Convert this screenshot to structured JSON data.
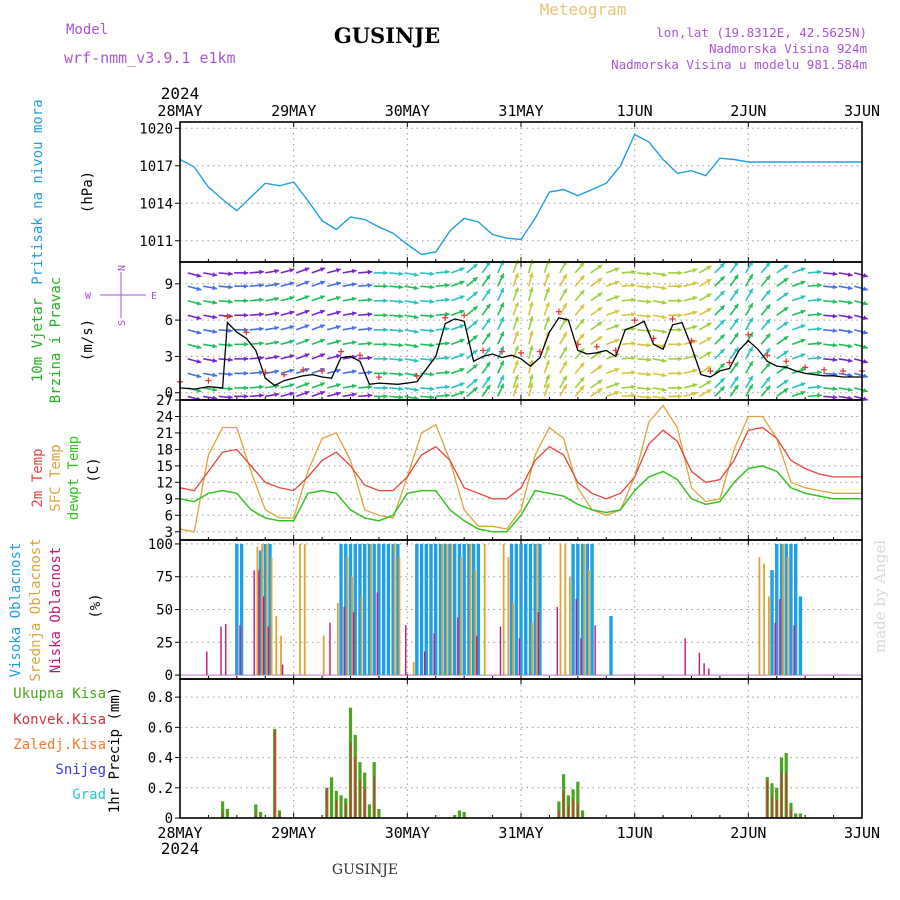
{
  "header": {
    "model_label": "Model",
    "model_name": "wrf-nmm_v3.9.1 e1km",
    "station": "GUSINJE",
    "product": "Meteogram",
    "lonlat": "lon,lat (19.8312E, 42.5625N)",
    "elevation": "Nadmorska Visina 924m",
    "model_elevation": "Nadmorska Visina u modelu 981.584m",
    "year": "2024"
  },
  "footer": {
    "station": "GUSINJE",
    "credit": "made by Angel",
    "year": "2024"
  },
  "colors": {
    "pressure": "#1fa0e0",
    "temp2m": "#e8453c",
    "sfc": "#dba53a",
    "dew": "#33c41f",
    "high": "#1f9fe6",
    "mid": "#dba53a",
    "low": "#c2177a",
    "precip_total": "#4aa51f",
    "precip_conv": "#d7303a",
    "wind_speed": "#000000",
    "gust_marks": "#e83030"
  },
  "chart_data": [
    {
      "id": "pressure",
      "type": "line",
      "title": "",
      "ylabel_lines": [
        "Pritisak na nivou mora"
      ],
      "unit": "(hPa)",
      "x_ticks": [
        "28MAY",
        "29MAY",
        "30MAY",
        "31MAY",
        "1JUN",
        "2JUN",
        "3JUN"
      ],
      "x_unit": "hours since 2024-05-28 00:00",
      "xlim": [
        0,
        144
      ],
      "ylim": [
        1009.3,
        1020.5
      ],
      "y_ticks": [
        1011,
        1014,
        1017,
        1020
      ],
      "series": [
        {
          "name": "Pritisak na nivou mora",
          "x": [
            0,
            3,
            6,
            9,
            12,
            15,
            18,
            21,
            24,
            27,
            30,
            33,
            36,
            39,
            42,
            45,
            48,
            51,
            54,
            57,
            60,
            63,
            66,
            69,
            72,
            75,
            78,
            81,
            84,
            87,
            90,
            93,
            96,
            99,
            102,
            105,
            108,
            111,
            114,
            117,
            120,
            123,
            126,
            129,
            132,
            135,
            138,
            141,
            144
          ],
          "y": [
            1017.5,
            1016.9,
            1015.3,
            1014.3,
            1013.4,
            1014.5,
            1015.6,
            1015.4,
            1015.7,
            1014.2,
            1012.6,
            1011.9,
            1012.9,
            1012.7,
            1012.1,
            1011.6,
            1010.7,
            1009.9,
            1010.1,
            1011.8,
            1012.8,
            1012.5,
            1011.5,
            1011.2,
            1011.1,
            1012.8,
            1014.9,
            1015.1,
            1014.6,
            1015.1,
            1015.6,
            1017.0,
            1019.5,
            1018.9,
            1017.5,
            1016.4,
            1016.6,
            1016.2,
            1017.6,
            1017.5,
            1017.3,
            1017.3,
            1017.3,
            1017.3,
            1017.3,
            1017.3,
            1017.3,
            1017.3,
            1017.3
          ]
        }
      ]
    },
    {
      "id": "wind",
      "type": "line",
      "title": "",
      "ylabel_lines": [
        "10m Vjetar",
        "Brzina i Pravac"
      ],
      "unit": "(m/s)",
      "compass": {
        "n": "N",
        "s": "S",
        "e": "E",
        "w": "W"
      },
      "xlim": [
        0,
        144
      ],
      "ylim": [
        -0.6,
        10.8
      ],
      "y_ticks": [
        0,
        3,
        6,
        9
      ],
      "series": [
        {
          "name": "speed",
          "x": [
            0,
            3,
            6,
            9,
            10,
            12,
            14,
            16,
            18,
            20,
            22,
            24,
            26,
            28,
            30,
            32,
            34,
            36,
            38,
            40,
            42,
            46,
            50,
            54,
            56,
            58,
            60,
            62,
            64,
            66,
            68,
            70,
            72,
            74,
            76,
            78,
            80,
            82,
            84,
            86,
            88,
            90,
            92,
            94,
            96,
            98,
            100,
            102,
            104,
            106,
            108,
            110,
            112,
            114,
            116,
            118,
            120,
            122,
            124,
            126,
            128,
            130,
            132,
            134,
            136,
            138,
            140,
            142,
            144
          ],
          "y": [
            0.4,
            0.3,
            0.5,
            0.4,
            5.8,
            5.0,
            4.5,
            3.5,
            1.2,
            0.6,
            1.0,
            1.2,
            1.4,
            1.5,
            1.3,
            1.2,
            2.9,
            3.0,
            2.6,
            0.7,
            0.8,
            0.7,
            0.9,
            3.0,
            5.7,
            6.1,
            5.9,
            2.6,
            3.0,
            3.2,
            2.9,
            3.1,
            2.8,
            2.2,
            2.9,
            5.0,
            6.2,
            6.0,
            3.5,
            3.2,
            3.3,
            3.5,
            3.0,
            5.2,
            5.5,
            5.9,
            4.0,
            3.6,
            5.6,
            5.8,
            3.8,
            1.5,
            1.3,
            1.8,
            2.0,
            3.5,
            4.3,
            3.6,
            2.6,
            2.2,
            2.1,
            1.8,
            1.6,
            1.5,
            1.4,
            1.4,
            1.3,
            1.3,
            1.3
          ]
        }
      ],
      "grid_arrow_directions_deg": [
        285,
        280,
        275,
        270,
        265,
        260,
        255,
        250,
        250,
        255,
        260,
        265,
        270,
        275,
        280,
        275,
        265,
        250,
        230,
        215,
        205,
        200,
        195,
        200,
        210,
        220,
        235,
        250,
        265,
        275,
        280,
        270,
        255,
        240,
        225,
        215,
        210,
        220,
        235,
        250,
        265,
        275,
        280,
        285
      ]
    },
    {
      "id": "temperature",
      "type": "line",
      "title": "",
      "ylabel_lines": [
        "2m Temp",
        "SFC Temp",
        "dewpt Temp"
      ],
      "unit": "(C)",
      "xlim": [
        0,
        144
      ],
      "ylim": [
        1.5,
        27
      ],
      "y_ticks": [
        3,
        6,
        9,
        12,
        15,
        18,
        21,
        24,
        27
      ],
      "series": [
        {
          "name": "2m Temp",
          "x": [
            0,
            3,
            6,
            9,
            12,
            15,
            18,
            21,
            24,
            27,
            30,
            33,
            36,
            39,
            42,
            45,
            48,
            51,
            54,
            57,
            60,
            63,
            66,
            69,
            72,
            75,
            78,
            81,
            84,
            87,
            90,
            93,
            96,
            99,
            102,
            105,
            108,
            111,
            114,
            117,
            120,
            123,
            126,
            129,
            132,
            135,
            138,
            141,
            144
          ],
          "y": [
            11,
            10.5,
            14,
            17.5,
            18,
            15,
            12,
            11,
            10.5,
            13,
            16,
            17.5,
            15,
            11.5,
            10.5,
            10.5,
            13,
            17,
            18.5,
            16,
            11,
            10,
            9,
            9,
            11,
            16,
            18.5,
            17,
            12,
            10,
            9,
            10,
            13,
            19,
            21.5,
            19.5,
            14,
            12,
            12.5,
            16,
            21.5,
            22,
            20,
            16,
            14.5,
            13.5,
            13,
            13,
            13
          ]
        },
        {
          "name": "SFC Temp",
          "x": [
            0,
            3,
            6,
            9,
            12,
            15,
            18,
            21,
            24,
            27,
            30,
            33,
            36,
            39,
            42,
            45,
            48,
            51,
            54,
            57,
            60,
            63,
            66,
            69,
            72,
            75,
            78,
            81,
            84,
            87,
            90,
            93,
            96,
            99,
            102,
            105,
            108,
            111,
            114,
            117,
            120,
            123,
            126,
            129,
            132,
            135,
            138,
            141,
            144
          ],
          "y": [
            3.5,
            3,
            17,
            22,
            22,
            14,
            7,
            5.5,
            5.5,
            14,
            20,
            21,
            16,
            7,
            6,
            5.5,
            13,
            21,
            22.5,
            16,
            7,
            4,
            4,
            3.5,
            7,
            17,
            22,
            20,
            11,
            7,
            6,
            7,
            13,
            23,
            26,
            22,
            11,
            8.5,
            9,
            18,
            24,
            24,
            20,
            12,
            11,
            10.5,
            10,
            10,
            10
          ]
        },
        {
          "name": "dewpt Temp",
          "x": [
            0,
            3,
            6,
            9,
            12,
            15,
            18,
            21,
            24,
            27,
            30,
            33,
            36,
            39,
            42,
            45,
            48,
            51,
            54,
            57,
            60,
            63,
            66,
            69,
            72,
            75,
            78,
            81,
            84,
            87,
            90,
            93,
            96,
            99,
            102,
            105,
            108,
            111,
            114,
            117,
            120,
            123,
            126,
            129,
            132,
            135,
            138,
            141,
            144
          ],
          "y": [
            9,
            8.5,
            10,
            10.5,
            10,
            7,
            5.5,
            5,
            5,
            10,
            10.5,
            10,
            7,
            5.5,
            5,
            6,
            10,
            10.5,
            10.5,
            7,
            5,
            3.5,
            3,
            3,
            6,
            10.5,
            10,
            9.5,
            8,
            7,
            6.5,
            7,
            10.5,
            13,
            14,
            12.5,
            9,
            8,
            8.5,
            12,
            14.5,
            15,
            14,
            11,
            10,
            9.5,
            9,
            9,
            9
          ]
        }
      ]
    },
    {
      "id": "clouds",
      "type": "bar",
      "title": "",
      "ylabel_lines": [
        "Visoka Oblacnost",
        "Srednja Oblacnost",
        "Niska Oblacnost"
      ],
      "unit": "(%)",
      "xlim": [
        0,
        144
      ],
      "ylim": [
        -3,
        103
      ],
      "y_ticks": [
        0,
        25,
        50,
        75,
        100
      ],
      "series": [
        {
          "name": "Visoka Oblacnost",
          "x": [
            12,
            13,
            17,
            18,
            19,
            34,
            35,
            36,
            37,
            38,
            39,
            40,
            41,
            42,
            43,
            44,
            45,
            46,
            50,
            51,
            52,
            53,
            54,
            55,
            56,
            57,
            58,
            59,
            60,
            61,
            62,
            63,
            70,
            71,
            72,
            73,
            74,
            75,
            76,
            83,
            84,
            85,
            86,
            87,
            91,
            125,
            126,
            127,
            128,
            129,
            130,
            131
          ],
          "y": [
            100,
            100,
            95,
            100,
            100,
            100,
            100,
            100,
            100,
            100,
            100,
            100,
            100,
            100,
            100,
            100,
            100,
            100,
            100,
            100,
            100,
            100,
            100,
            100,
            100,
            100,
            100,
            100,
            100,
            100,
            100,
            100,
            100,
            100,
            100,
            100,
            100,
            100,
            100,
            100,
            100,
            100,
            100,
            100,
            45,
            80,
            100,
            100,
            100,
            100,
            100,
            60
          ]
        },
        {
          "name": "Srednja Oblacnost",
          "x": [
            16,
            17,
            18,
            19,
            20,
            21,
            25,
            26,
            30,
            33,
            35,
            36,
            38,
            40,
            45,
            46,
            49,
            55,
            56,
            57,
            59,
            61,
            62,
            64,
            68,
            69,
            70,
            74,
            75,
            80,
            81,
            82,
            85,
            86,
            122,
            123,
            124,
            127,
            128
          ],
          "y": [
            98,
            100,
            100,
            90,
            45,
            30,
            100,
            100,
            30,
            55,
            90,
            75,
            60,
            100,
            100,
            90,
            10,
            100,
            100,
            100,
            90,
            100,
            80,
            100,
            100,
            90,
            55,
            40,
            100,
            100,
            100,
            75,
            100,
            80,
            90,
            85,
            60,
            100,
            90
          ]
        },
        {
          "name": "Niska Oblacnost",
          "x": [
            6,
            9,
            10,
            13,
            16,
            17,
            18,
            19,
            22,
            32,
            35,
            37,
            42,
            48,
            52,
            54,
            59,
            63,
            68,
            72,
            76,
            80,
            84,
            85,
            88,
            107,
            110,
            111,
            112,
            126,
            127,
            130
          ],
          "y": [
            18,
            37,
            39,
            38,
            80,
            80,
            60,
            37,
            8,
            40,
            52,
            48,
            63,
            38,
            18,
            32,
            44,
            30,
            37,
            28,
            48,
            52,
            58,
            28,
            38,
            28,
            17,
            9,
            5,
            40,
            58,
            38
          ]
        }
      ]
    },
    {
      "id": "precip",
      "type": "bar",
      "title": "",
      "ylabel_lines": [
        "1hr Precip"
      ],
      "unit": "(mm)",
      "legend": [
        "Ukupna Kisa",
        "Konvek.Kisa",
        "Zaledj.Kisa",
        "Snijeg",
        "Grad"
      ],
      "legend_colors": [
        "#4aa51f",
        "#d7303a",
        "#ee7a30",
        "#3a3ae0",
        "#28c8c8"
      ],
      "xlim": [
        0,
        144
      ],
      "ylim": [
        0,
        0.92
      ],
      "y_ticks": [
        0,
        0.2,
        0.4,
        0.6,
        0.8
      ],
      "series": [
        {
          "name": "Ukupna Kisa",
          "x": [
            9,
            10,
            16,
            17,
            20,
            21,
            31,
            32,
            33,
            34,
            35,
            36,
            37,
            38,
            39,
            40,
            41,
            42,
            58,
            59,
            60,
            80,
            81,
            82,
            83,
            84,
            85,
            124,
            125,
            126,
            127,
            128,
            129,
            130,
            131
          ],
          "y": [
            0.11,
            0.06,
            0.09,
            0.04,
            0.59,
            0.05,
            0.2,
            0.27,
            0.18,
            0.15,
            0.13,
            0.73,
            0.55,
            0.37,
            0.3,
            0.09,
            0.37,
            0.06,
            0.02,
            0.05,
            0.04,
            0.11,
            0.29,
            0.15,
            0.19,
            0.24,
            0.05,
            0.27,
            0.23,
            0.2,
            0.4,
            0.43,
            0.1,
            0.03,
            0.03
          ]
        },
        {
          "name": "Konvek.Kisa",
          "x": [
            9,
            16,
            20,
            21,
            31,
            33,
            35,
            36,
            37,
            38,
            39,
            41,
            80,
            81,
            82,
            83,
            84,
            124,
            125,
            126,
            127,
            128,
            129
          ],
          "y": [
            0.04,
            0.03,
            0.58,
            0.03,
            0.2,
            0.12,
            0.1,
            0.5,
            0.4,
            0.25,
            0.2,
            0.28,
            0.05,
            0.18,
            0.08,
            0.12,
            0.1,
            0.25,
            0.15,
            0.12,
            0.3,
            0.3,
            0.05
          ]
        }
      ]
    }
  ]
}
